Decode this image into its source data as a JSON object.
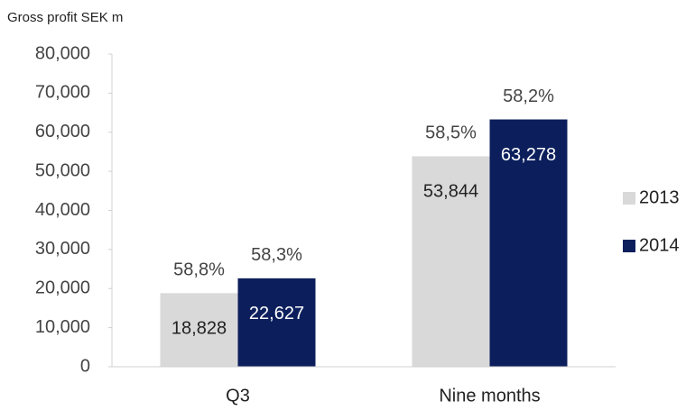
{
  "chart_data": {
    "type": "bar",
    "title": "Gross profit SEK m",
    "categories": [
      "Q3",
      "Nine months"
    ],
    "series": [
      {
        "name": "2013",
        "color": "#d9d9d9",
        "values": [
          18828,
          53844
        ],
        "value_labels": [
          "18,828",
          "53,844"
        ],
        "margin_labels": [
          "58,8%",
          "58,5%"
        ]
      },
      {
        "name": "2014",
        "color": "#0c1f5c",
        "values": [
          22627,
          63278
        ],
        "value_labels": [
          "22,627",
          "63,278"
        ],
        "margin_labels": [
          "58,3%",
          "58,2%"
        ]
      }
    ],
    "ylim": [
      0,
      80000
    ],
    "yticks": [
      0,
      {
        "value": 10000,
        "label": "10,000"
      },
      {
        "value": 20000,
        "label": "20,000"
      },
      {
        "value": 30000,
        "label": "30,000"
      },
      {
        "value": 40000,
        "label": "40,000"
      },
      {
        "value": 50000,
        "label": "50,000"
      },
      {
        "value": 60000,
        "label": "60,000"
      },
      {
        "value": 70000,
        "label": "70,000"
      },
      {
        "value": 80000,
        "label": "80,000"
      }
    ],
    "legend": "right",
    "grid": false
  }
}
